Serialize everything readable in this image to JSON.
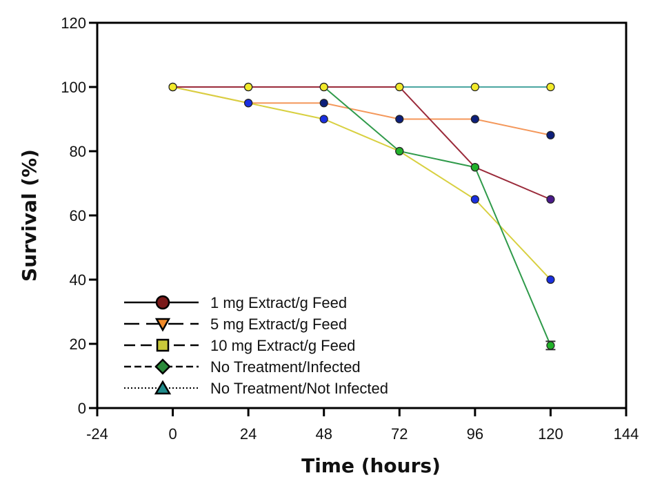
{
  "chart_data": {
    "type": "line",
    "title": "",
    "xlabel": "Time (hours)",
    "ylabel": "Survival (%)",
    "xlim": [
      -24,
      144
    ],
    "ylim": [
      0,
      120
    ],
    "xticks": [
      -24,
      0,
      24,
      48,
      72,
      96,
      120,
      144
    ],
    "yticks": [
      0,
      20,
      40,
      60,
      80,
      100,
      120
    ],
    "grid": false,
    "legend_position": "bottom-left",
    "x": [
      0,
      24,
      48,
      72,
      96,
      120
    ],
    "series": [
      {
        "name": "No Treatment/Not Infected",
        "values": [
          100,
          100,
          100,
          100,
          100,
          100
        ],
        "line_color": "#4aa6a0",
        "marker_colors": [
          "#f2ea2a",
          "#f2ea2a",
          "#f2ea2a",
          "#f2ea2a",
          "#f2ea2a",
          "#f2ea2a"
        ],
        "legend_marker": "triangle",
        "legend_marker_color": "#1f8a8a",
        "legend_dash": "dotted"
      },
      {
        "name": "5 mg Extract/g Feed",
        "values": [
          100,
          95,
          95,
          90,
          90,
          85
        ],
        "line_color": "#f4975a",
        "marker_colors": [
          "#f2ea2a",
          "#1a2fe0",
          "#0d1f7a",
          "#0d1f7a",
          "#0d1f7a",
          "#0d1f7a"
        ],
        "legend_marker": "triangle-down",
        "legend_marker_color": "#f08a2a",
        "legend_dash": "dashed"
      },
      {
        "name": "10 mg Extract/g Feed",
        "values": [
          100,
          95,
          90,
          80,
          65,
          40
        ],
        "line_color": "#d8d040",
        "marker_colors": [
          "#f2ea2a",
          "#1a2fe0",
          "#1a2fe0",
          "#22b22a",
          "#1a2fe0",
          "#1a2fe0"
        ],
        "legend_marker": "square",
        "legend_marker_color": "#c8c83a",
        "legend_dash": "dashed-long"
      },
      {
        "name": "No Treatment/Infected",
        "values": [
          100,
          100,
          100,
          80,
          75,
          19.5
        ],
        "line_color": "#2f9a4a",
        "marker_colors": [
          "#f2ea2a",
          "#f2ea2a",
          "#f2ea2a",
          "#22b22a",
          "#22b22a",
          "#22b22a"
        ],
        "legend_marker": "diamond",
        "legend_marker_color": "#2a8a3a",
        "legend_dash": "dashed-short"
      },
      {
        "name": "1 mg Extract/g Feed",
        "values": [
          100,
          100,
          100,
          100,
          75,
          65
        ],
        "line_color": "#9a2a3a",
        "marker_colors": [
          "#f2ea2a",
          "#f2ea2a",
          "#f2ea2a",
          "#f2ea2a",
          "#22b22a",
          "#4a1a8a"
        ],
        "legend_marker": "circle",
        "legend_marker_color": "#7a1a1a",
        "legend_dash": "solid"
      }
    ],
    "legend_order": [
      "1 mg Extract/g Feed",
      "5 mg Extract/g Feed",
      "10 mg Extract/g Feed",
      "No Treatment/Infected",
      "No Treatment/Not Infected"
    ]
  }
}
